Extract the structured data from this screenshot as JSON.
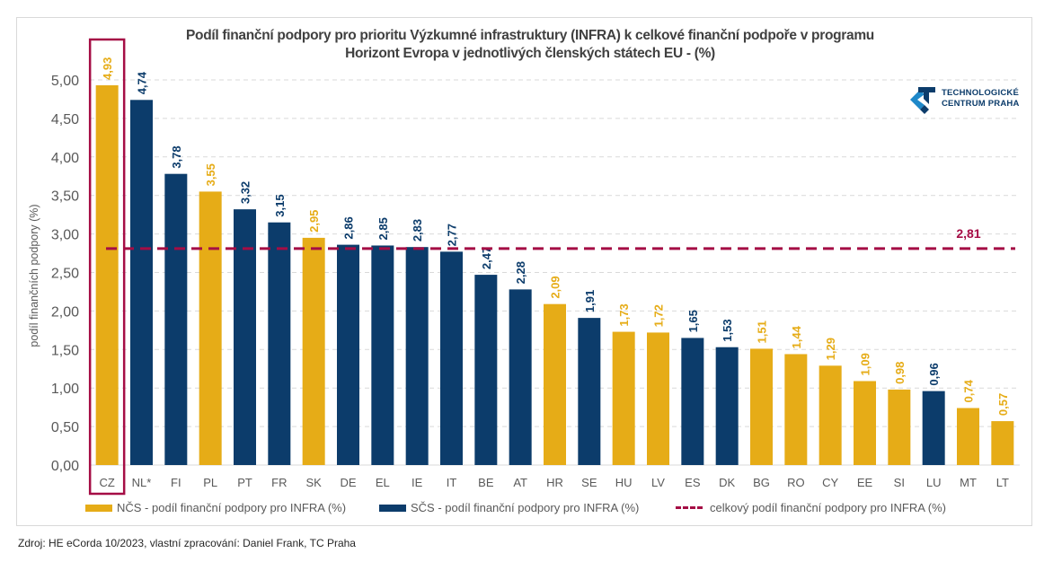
{
  "chart_data": {
    "type": "bar",
    "title_lines": [
      "Podíl finanční podpory pro prioritu Výzkumné infrastruktury (INFRA) k celkové finanční podpoře v programu",
      "Horizont Evropa v jednotlivých členských státech EU  -  (%)"
    ],
    "xlabel": "",
    "ylabel": "podíl finančních podpory (%)",
    "ylim": [
      0,
      5.0
    ],
    "yticks": [
      "0,00",
      "0,50",
      "1,00",
      "1,50",
      "2,00",
      "2,50",
      "3,00",
      "3,50",
      "4,00",
      "4,50",
      "5,00"
    ],
    "ytick_values": [
      0,
      0.5,
      1,
      1.5,
      2,
      2.5,
      3,
      3.5,
      4,
      4.5,
      5
    ],
    "grid": true,
    "categories": [
      "CZ",
      "NL*",
      "FI",
      "PL",
      "PT",
      "FR",
      "SK",
      "DE",
      "EL",
      "IE",
      "IT",
      "BE",
      "AT",
      "HR",
      "SE",
      "HU",
      "LV",
      "ES",
      "DK",
      "BG",
      "RO",
      "CY",
      "EE",
      "SI",
      "LU",
      "MT",
      "LT"
    ],
    "values": [
      4.93,
      4.74,
      3.78,
      3.55,
      3.32,
      3.15,
      2.95,
      2.86,
      2.85,
      2.83,
      2.77,
      2.47,
      2.28,
      2.09,
      1.91,
      1.73,
      1.72,
      1.65,
      1.53,
      1.51,
      1.44,
      1.29,
      1.09,
      0.98,
      0.96,
      0.74,
      0.57
    ],
    "value_labels": [
      "4,93",
      "4,74",
      "3,78",
      "3,55",
      "3,32",
      "3,15",
      "2,95",
      "2,86",
      "2,85",
      "2,83",
      "2,77",
      "2,47",
      "2,28",
      "2,09",
      "1,91",
      "1,73",
      "1,72",
      "1,65",
      "1,53",
      "1,51",
      "1,44",
      "1,29",
      "1,09",
      "0,98",
      "0,96",
      "0,74",
      "0,57"
    ],
    "groups": [
      "NCS",
      "SCS",
      "SCS",
      "NCS",
      "SCS",
      "SCS",
      "NCS",
      "SCS",
      "SCS",
      "SCS",
      "SCS",
      "SCS",
      "SCS",
      "NCS",
      "SCS",
      "NCS",
      "NCS",
      "SCS",
      "SCS",
      "NCS",
      "NCS",
      "NCS",
      "NCS",
      "NCS",
      "SCS",
      "NCS",
      "NCS"
    ],
    "series": [
      {
        "name": "NČS - podíl finanční podpory pro INFRA (%)",
        "key": "NCS",
        "color": "#e6ac17"
      },
      {
        "name": "SČS - podíl finanční podpory pro INFRA (%)",
        "key": "SCS",
        "color": "#0c3c6b"
      }
    ],
    "reference_line": {
      "name": "celkový podíl finanční podpory pro INFRA (%)",
      "value": 2.81,
      "label": "2,81",
      "color": "#a50d45"
    },
    "highlighted_category": "CZ",
    "highlight_color": "#a50d45",
    "legend_position": "bottom"
  },
  "logo": {
    "line1": "TECHNOLOGICKÉ",
    "line2": "CENTRUM PRAHA"
  },
  "source": "Zdroj: HE eCorda 10/2023, vlastní zpracování: Daniel Frank, TC Praha"
}
